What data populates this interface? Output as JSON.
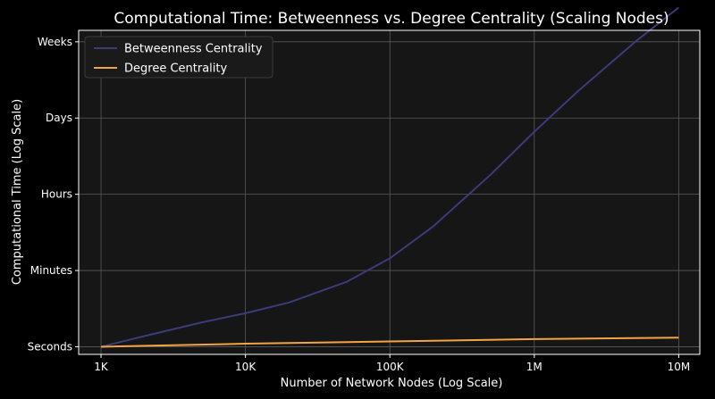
{
  "chart_data": {
    "type": "line",
    "title": "Computational Time: Betweenness vs. Degree Centrality (Scaling Nodes)",
    "xlabel": "Number of Network Nodes (Log Scale)",
    "ylabel": "Computational Time (Log Scale)",
    "x_scale": "log",
    "y_scale": "categorical-log",
    "x_ticks": [
      {
        "value": 1000,
        "label": "1K"
      },
      {
        "value": 10000,
        "label": "10K"
      },
      {
        "value": 100000,
        "label": "100K"
      },
      {
        "value": 1000000,
        "label": "1M"
      },
      {
        "value": 10000000,
        "label": "10M"
      }
    ],
    "y_ticks": [
      {
        "value": 0,
        "label": "Seconds"
      },
      {
        "value": 1,
        "label": "Minutes"
      },
      {
        "value": 2,
        "label": "Hours"
      },
      {
        "value": 3,
        "label": "Days"
      },
      {
        "value": 4,
        "label": "Weeks"
      }
    ],
    "xlim": [
      700,
      14000000
    ],
    "ylim": [
      -0.1,
      4.15
    ],
    "grid": true,
    "legend_position": "top-left",
    "series": [
      {
        "name": "Betweenness Centrality",
        "color": "#3b3b7a",
        "x": [
          1000,
          2000,
          5000,
          10000,
          20000,
          50000,
          100000,
          200000,
          500000,
          1000000,
          2000000,
          5000000,
          10000000
        ],
        "y": [
          0.0,
          0.14,
          0.32,
          0.44,
          0.58,
          0.85,
          1.16,
          1.58,
          2.26,
          2.82,
          3.35,
          4.0,
          4.45
        ]
      },
      {
        "name": "Degree Centrality",
        "color": "#f5a442",
        "x": [
          1000,
          10000,
          100000,
          1000000,
          10000000
        ],
        "y": [
          0.0,
          0.04,
          0.07,
          0.1,
          0.12
        ]
      }
    ]
  }
}
